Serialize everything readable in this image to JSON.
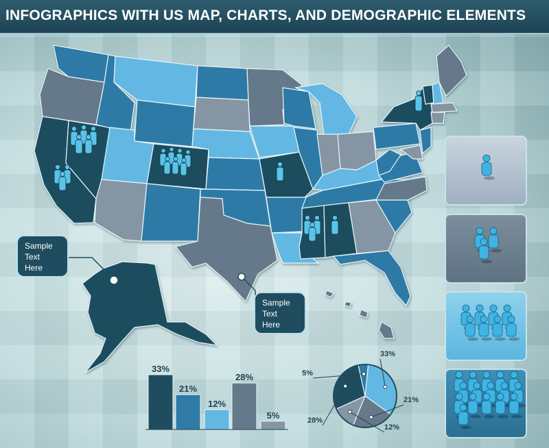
{
  "title": "INFOGRAPHICS WITH US MAP, CHARTS, AND DEMOGRAPHIC ELEMENTS",
  "callouts": [
    {
      "lines": [
        "Sample",
        "Text",
        "Here"
      ]
    },
    {
      "lines": [
        "Sample",
        "Text",
        "Here"
      ]
    }
  ],
  "colors": {
    "dark": "#1f4d5f",
    "mid": "#2f7aa6",
    "light": "#62b8e3",
    "gray": "#8595a3",
    "slate": "#65798a"
  },
  "chart_data": [
    {
      "type": "bar",
      "categories": [
        "",
        "",
        "",
        "",
        ""
      ],
      "values": [
        33,
        21,
        12,
        28,
        5
      ],
      "labels": [
        "33%",
        "21%",
        "12%",
        "28%",
        "5%"
      ]
    },
    {
      "type": "pie",
      "values": [
        33,
        21,
        12,
        28,
        5
      ],
      "labels": [
        "33%",
        "21%",
        "12%",
        "28%",
        "5%"
      ]
    }
  ],
  "panels": [
    {
      "people": 1
    },
    {
      "people": 3
    },
    {
      "people": 8
    },
    {
      "people": 16
    }
  ]
}
